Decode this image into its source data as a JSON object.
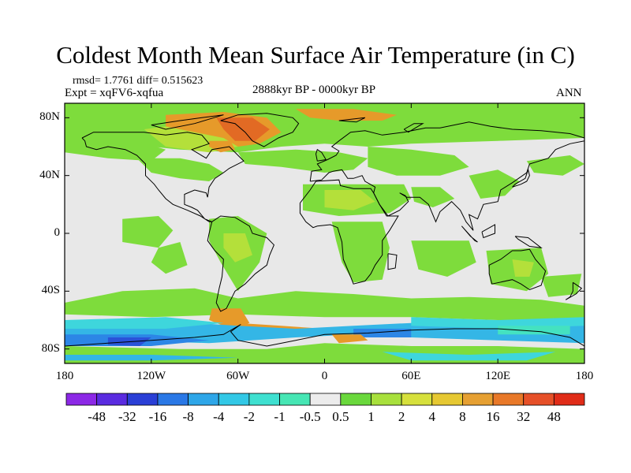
{
  "title": "Coldest Month Mean Surface Air Temperature (in C)",
  "stats": "rmsd= 1.7761 diff= 0.515623",
  "experiment": "Expt = xqFV6-xqfua",
  "period": "2888kyr BP - 0000kyr BP",
  "season": "ANN",
  "map": {
    "land_color": "#e8e8e8",
    "coastline_color": "#000000",
    "lon_range": [
      -180,
      180
    ],
    "lat_range": [
      -90,
      90
    ]
  },
  "axes": {
    "y_ticks": [
      {
        "lat": 80,
        "label": "80N"
      },
      {
        "lat": 40,
        "label": "40N"
      },
      {
        "lat": 0,
        "label": "0"
      },
      {
        "lat": -40,
        "label": "40S"
      },
      {
        "lat": -80,
        "label": "80S"
      }
    ],
    "x_ticks": [
      {
        "lon": -180,
        "label": "180"
      },
      {
        "lon": -120,
        "label": "120W"
      },
      {
        "lon": -60,
        "label": "60W"
      },
      {
        "lon": 0,
        "label": "0"
      },
      {
        "lon": 60,
        "label": "60E"
      },
      {
        "lon": 120,
        "label": "120E"
      },
      {
        "lon": 180,
        "label": "180"
      }
    ]
  },
  "colorbar": {
    "colors": [
      "#8c28e6",
      "#5a2be0",
      "#2a3fd6",
      "#2a78e6",
      "#2ea6e8",
      "#32c8e6",
      "#3ee0d0",
      "#46e6b4",
      "#ececec",
      "#6ad83c",
      "#a8e03c",
      "#d6e03c",
      "#e6c832",
      "#e6a032",
      "#e87828",
      "#e65028",
      "#e02c18"
    ],
    "labels": [
      "-48",
      "-32",
      "-16",
      "-8",
      "-4",
      "-2",
      "-1",
      "-0.5",
      "0.5",
      "1",
      "2",
      "4",
      "8",
      "16",
      "32",
      "48"
    ]
  },
  "field": {
    "green": "#7edc3c",
    "yellowgreen": "#b4e03a",
    "orange": "#e69a2a",
    "red_orange": "#e26a24",
    "cyan": "#3ed6dc",
    "light_blue": "#34b6e6",
    "blue": "#2c86e6",
    "dark_blue": "#2a52d8",
    "turquoise": "#44e2c0"
  }
}
